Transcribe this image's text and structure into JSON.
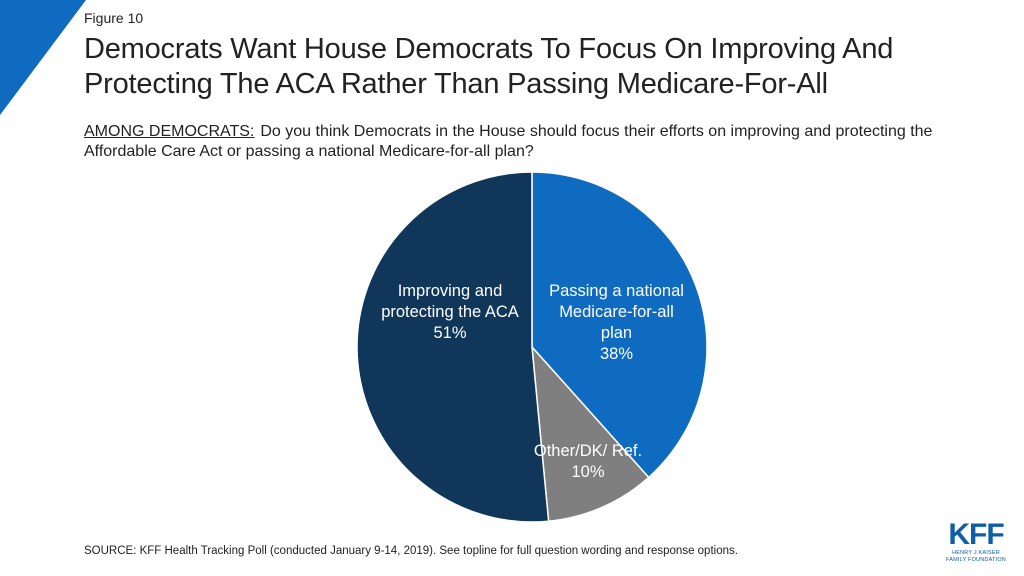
{
  "figure_label": "Figure 10",
  "title": "Democrats Want House Democrats To Focus On Improving And Protecting The ACA Rather Than Passing Medicare-For-All",
  "question": {
    "prefix": "AMONG DEMOCRATS:",
    "text": "Do you think Democrats in the House should focus their efforts on improving and protecting the Affordable Care Act or passing a national Medicare-for-all plan?"
  },
  "chart_data": {
    "type": "pie",
    "slices": [
      {
        "label": "Passing a national Medicare-for-all plan",
        "value": 38,
        "display": "38%",
        "color": "#0f6bc0"
      },
      {
        "label": "Other/DK/ Ref.",
        "value": 10,
        "display": "10%",
        "color": "#7f7f7f"
      },
      {
        "label": "Improving and protecting the ACA",
        "value": 51,
        "display": "51%",
        "color": "#10375a"
      }
    ]
  },
  "source": "SOURCE: KFF Health Tracking Poll (conducted January 9-14, 2019). See topline for full question wording and response options.",
  "logo": {
    "mark": "KFF",
    "subtitle_line1": "HENRY J KAISER",
    "subtitle_line2": "FAMILY FOUNDATION"
  },
  "colors": {
    "accent": "#0f6bc0",
    "dark": "#10375a",
    "gray": "#7f7f7f"
  }
}
